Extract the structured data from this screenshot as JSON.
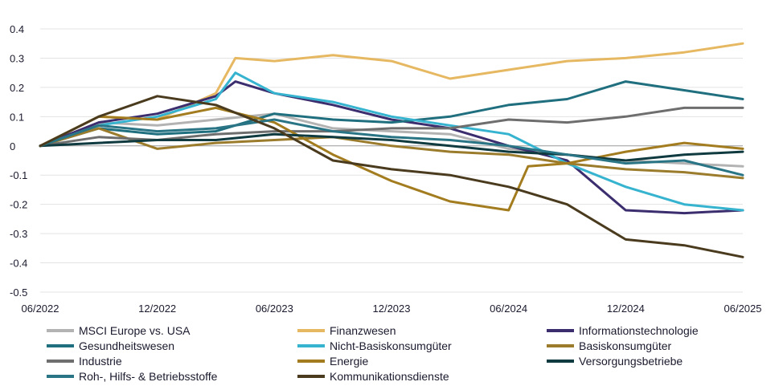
{
  "chart_data": {
    "type": "line",
    "title": "",
    "xlabel": "",
    "ylabel": "",
    "x_ticks": [
      "06/2022",
      "12/2022",
      "06/2023",
      "12/2023",
      "06/2024",
      "12/2024",
      "06/2025"
    ],
    "y_ticks": [
      "0.4",
      "0.3",
      "0.2",
      "0.1",
      "0",
      "-0.1",
      "-0.2",
      "-0.3",
      "-0.4",
      "-0.5"
    ],
    "ylim": [
      -0.5,
      0.4
    ],
    "grid": "horizontal",
    "legend_position": "bottom",
    "x_index_note_months": [
      0,
      3,
      6,
      9,
      12,
      15,
      18,
      21,
      24,
      27,
      30,
      33,
      36
    ],
    "series": [
      {
        "name": "MSCI Europe vs. USA",
        "color": "#b3b3b3",
        "x": [
          0,
          3,
          6,
          9,
          12,
          15,
          18,
          21,
          24,
          27,
          30,
          33,
          36
        ],
        "values": [
          0.0,
          0.08,
          0.07,
          0.09,
          0.11,
          0.06,
          0.05,
          0.04,
          -0.01,
          -0.03,
          -0.05,
          -0.06,
          -0.07
        ]
      },
      {
        "name": "Finanzwesen",
        "color": "#e6b861",
        "x": [
          0,
          3,
          6,
          9,
          10,
          12,
          15,
          18,
          21,
          24,
          27,
          30,
          33,
          36
        ],
        "values": [
          0.0,
          0.1,
          0.09,
          0.18,
          0.3,
          0.29,
          0.31,
          0.29,
          0.23,
          0.26,
          0.29,
          0.3,
          0.32,
          0.35
        ]
      },
      {
        "name": "Informationstechnologie",
        "color": "#3b2d6e",
        "x": [
          0,
          3,
          6,
          9,
          10,
          12,
          15,
          18,
          21,
          24,
          27,
          30,
          33,
          36
        ],
        "values": [
          0.0,
          0.08,
          0.11,
          0.17,
          0.22,
          0.18,
          0.14,
          0.09,
          0.06,
          0.0,
          -0.05,
          -0.22,
          -0.23,
          -0.22
        ]
      },
      {
        "name": "Gesundheitswesen",
        "color": "#1f6f7f",
        "x": [
          0,
          3,
          6,
          9,
          12,
          15,
          18,
          21,
          24,
          27,
          30,
          33,
          36
        ],
        "values": [
          0.0,
          0.06,
          0.04,
          0.05,
          0.11,
          0.09,
          0.08,
          0.1,
          0.14,
          0.16,
          0.22,
          0.19,
          0.16
        ]
      },
      {
        "name": "Nicht-Basiskonsumgüter",
        "color": "#36b3cf",
        "x": [
          0,
          3,
          6,
          9,
          10,
          12,
          15,
          18,
          21,
          24,
          27,
          30,
          33,
          36
        ],
        "values": [
          0.0,
          0.07,
          0.1,
          0.16,
          0.25,
          0.18,
          0.15,
          0.1,
          0.07,
          0.04,
          -0.06,
          -0.14,
          -0.2,
          -0.22
        ]
      },
      {
        "name": "Basiskonsumgüter",
        "color": "#9b7b2c",
        "x": [
          0,
          3,
          6,
          9,
          12,
          15,
          18,
          21,
          24,
          27,
          30,
          33,
          36
        ],
        "values": [
          0.0,
          0.06,
          -0.01,
          0.01,
          0.02,
          0.03,
          0.0,
          -0.02,
          -0.03,
          -0.06,
          -0.08,
          -0.09,
          -0.11
        ]
      },
      {
        "name": "Industrie",
        "color": "#6e6e6e",
        "x": [
          0,
          3,
          6,
          9,
          12,
          15,
          18,
          21,
          24,
          27,
          30,
          33,
          36
        ],
        "values": [
          0.0,
          0.03,
          0.02,
          0.04,
          0.05,
          0.05,
          0.06,
          0.06,
          0.09,
          0.08,
          0.1,
          0.13,
          0.13
        ]
      },
      {
        "name": "Energie",
        "color": "#a27c1e",
        "x": [
          0,
          3,
          6,
          9,
          12,
          15,
          18,
          21,
          24,
          25,
          27,
          30,
          33,
          36
        ],
        "values": [
          0.0,
          0.1,
          0.09,
          0.13,
          0.08,
          -0.03,
          -0.12,
          -0.19,
          -0.22,
          -0.07,
          -0.06,
          -0.02,
          0.01,
          -0.01
        ]
      },
      {
        "name": "Versorgungsbetriebe",
        "color": "#0f3a3f",
        "x": [
          0,
          3,
          6,
          9,
          12,
          15,
          18,
          21,
          24,
          27,
          30,
          33,
          36
        ],
        "values": [
          0.0,
          0.01,
          0.02,
          0.02,
          0.04,
          0.03,
          0.02,
          0.0,
          -0.02,
          -0.03,
          -0.05,
          -0.03,
          -0.02
        ]
      },
      {
        "name": "Roh-, Hilfs- & Betriebsstoffe",
        "color": "#2a7585",
        "x": [
          0,
          3,
          6,
          9,
          12,
          15,
          18,
          21,
          24,
          27,
          30,
          33,
          36
        ],
        "values": [
          0.0,
          0.07,
          0.05,
          0.06,
          0.09,
          0.05,
          0.03,
          0.02,
          0.0,
          -0.03,
          -0.06,
          -0.05,
          -0.1
        ]
      },
      {
        "name": "Kommunikationsdienste",
        "color": "#4a3b1e",
        "x": [
          0,
          3,
          6,
          9,
          12,
          15,
          18,
          21,
          24,
          27,
          30,
          33,
          36
        ],
        "values": [
          0.0,
          0.1,
          0.17,
          0.14,
          0.06,
          -0.05,
          -0.08,
          -0.1,
          -0.14,
          -0.2,
          -0.32,
          -0.34,
          -0.38
        ]
      }
    ]
  }
}
